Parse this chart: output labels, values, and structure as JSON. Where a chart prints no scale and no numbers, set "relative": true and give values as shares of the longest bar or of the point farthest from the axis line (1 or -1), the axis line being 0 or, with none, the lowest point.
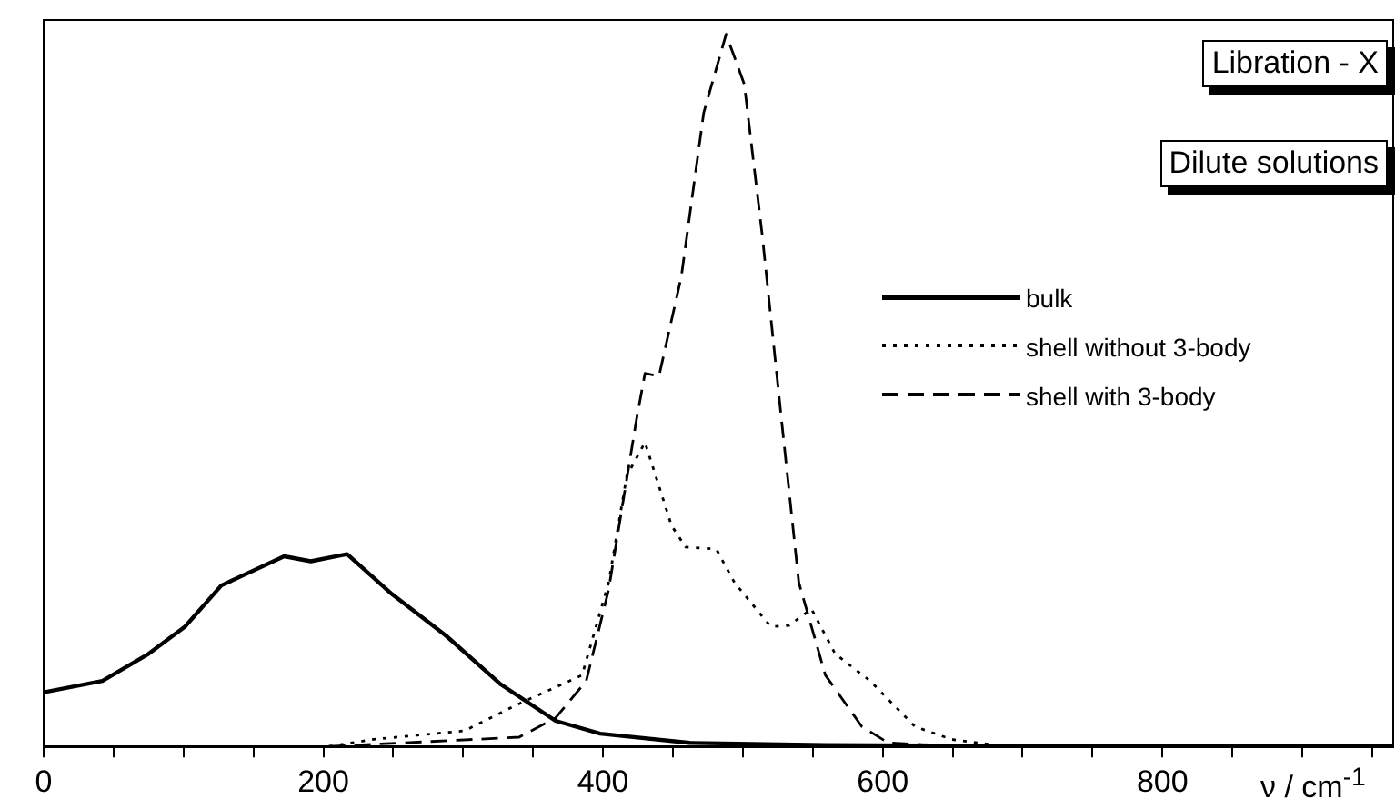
{
  "chart_data": {
    "type": "line",
    "relative": true,
    "xlabel": "ν / cm$^{-1}$",
    "annotations": [
      "Libration - X",
      "Dilute solutions"
    ],
    "xlim": [
      0,
      965
    ],
    "xticks": [
      0,
      {
        "value": 50,
        "label": null
      },
      {
        "value": 100,
        "label": null
      },
      {
        "value": 150,
        "label": null
      },
      200,
      {
        "value": 250,
        "label": null
      },
      {
        "value": 300,
        "label": null
      },
      {
        "value": 350,
        "label": null
      },
      400,
      {
        "value": 450,
        "label": null
      },
      {
        "value": 500,
        "label": null
      },
      {
        "value": 550,
        "label": null
      },
      600,
      {
        "value": 650,
        "label": null
      },
      {
        "value": 700,
        "label": null
      },
      {
        "value": 750,
        "label": null
      },
      800,
      {
        "value": 850,
        "label": null
      },
      {
        "value": 900,
        "label": null
      },
      {
        "value": 950,
        "label": null
      }
    ],
    "grid": false,
    "legend": "right",
    "marker": "none",
    "series": [
      {
        "name": "bulk",
        "color": "#000000",
        "line_style": "solid",
        "x": [
          0,
          42,
          75,
          101,
          127,
          172,
          191,
          217,
          249,
          288,
          327,
          366,
          398,
          462,
          559,
          800,
          965
        ],
        "values": [
          0.076,
          0.092,
          0.13,
          0.168,
          0.226,
          0.267,
          0.26,
          0.27,
          0.214,
          0.155,
          0.087,
          0.036,
          0.018,
          0.005,
          0.002,
          0,
          0
        ]
      },
      {
        "name": "shell without 3-body",
        "color": "#000000",
        "line_style": "dotted",
        "x": [
          204,
          236,
          301,
          340,
          385,
          404,
          417,
          430,
          449,
          459,
          481,
          494,
          520,
          533,
          549,
          566,
          591,
          604,
          623,
          649,
          688
        ],
        "values": [
          0,
          0.01,
          0.022,
          0.06,
          0.1,
          0.23,
          0.38,
          0.427,
          0.31,
          0.28,
          0.277,
          0.23,
          0.168,
          0.17,
          0.193,
          0.13,
          0.092,
          0.066,
          0.028,
          0.01,
          0
        ]
      },
      {
        "name": "shell with 3-body",
        "color": "#000000",
        "line_style": "dashed",
        "x": [
          204,
          340,
          366,
          388,
          404,
          424,
          430,
          440,
          456,
          472,
          488,
          501,
          514,
          527,
          540,
          559,
          585,
          604,
          656
        ],
        "values": [
          0,
          0.013,
          0.04,
          0.092,
          0.22,
          0.46,
          0.524,
          0.52,
          0.66,
          0.89,
          1.0,
          0.93,
          0.715,
          0.47,
          0.23,
          0.1,
          0.028,
          0.005,
          0
        ]
      }
    ]
  }
}
